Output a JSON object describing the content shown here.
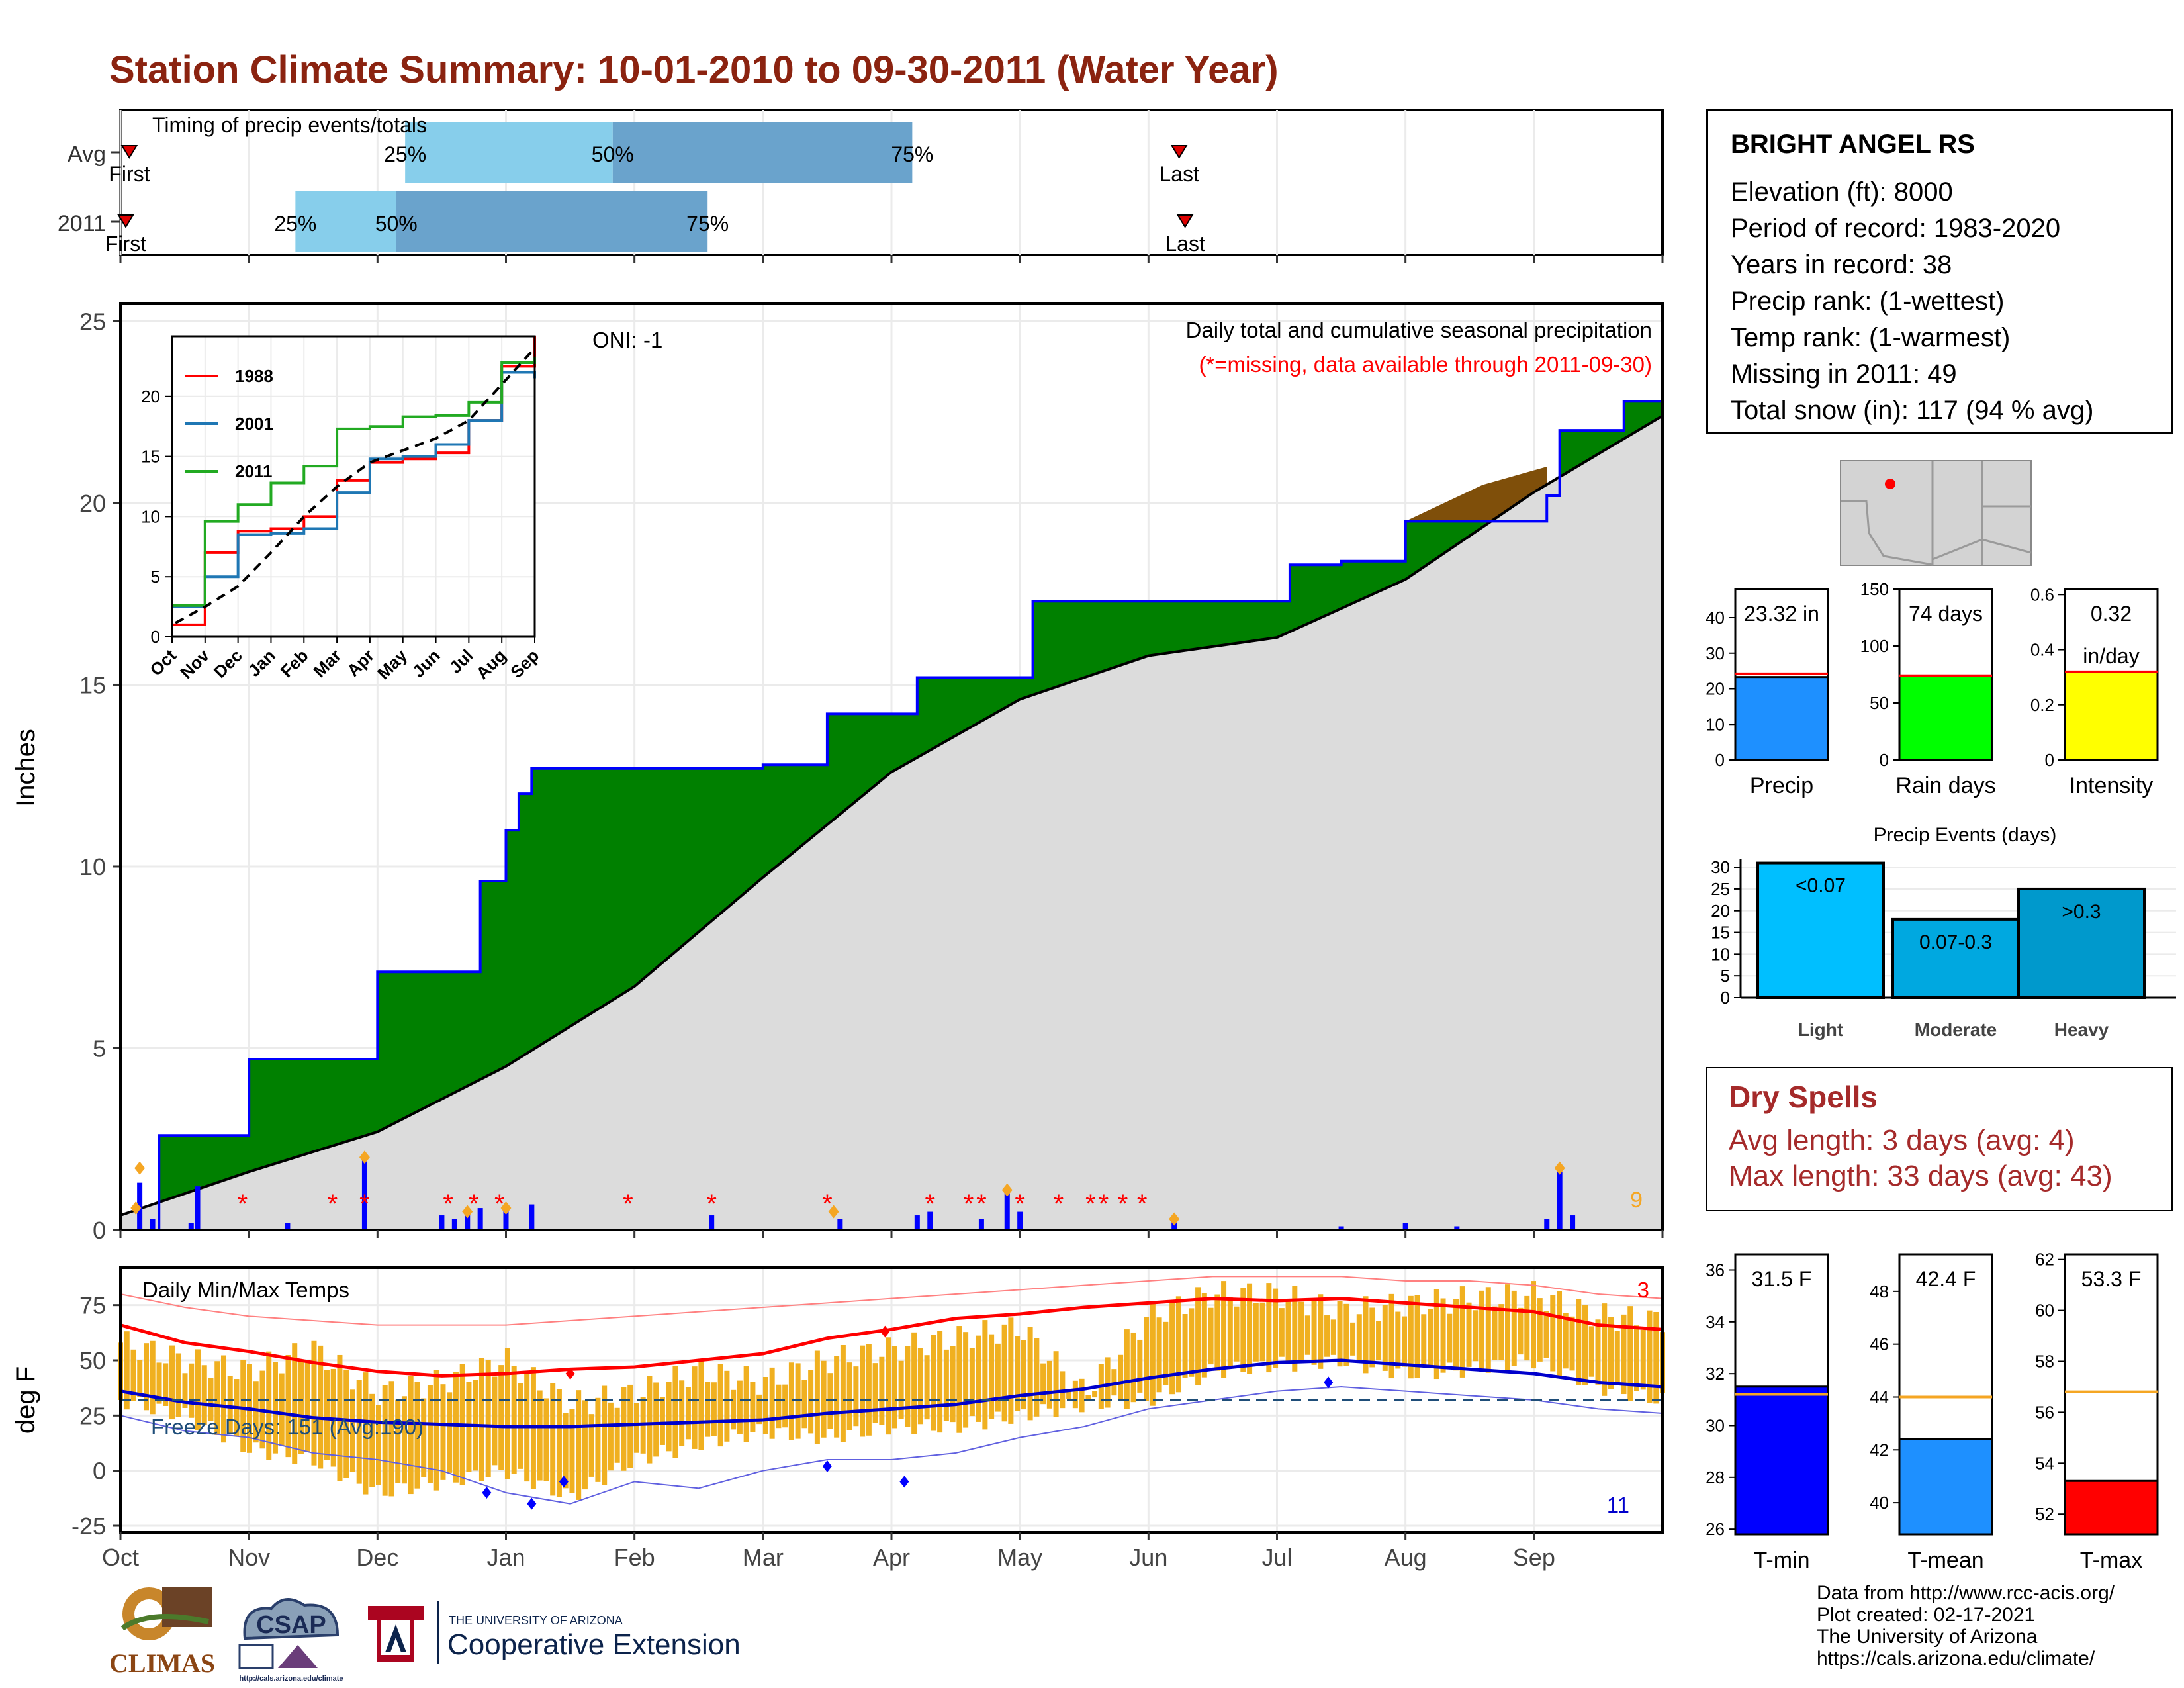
{
  "title": "Station Climate Summary: 10-01-2010 to 09-30-2011 (Water Year)",
  "colors": {
    "title": "#8b2310",
    "green": "#008000",
    "brown": "#7f4f0a",
    "blue": "#0000ff",
    "orange": "#f0b020",
    "red": "#ff0000",
    "gray": "#dcdcdc"
  },
  "months": [
    "Oct",
    "Nov",
    "Dec",
    "Jan",
    "Feb",
    "Mar",
    "Apr",
    "May",
    "Jun",
    "Jul",
    "Aug",
    "Sep"
  ],
  "timing": {
    "title": "Timing of precip events/totals",
    "rows": [
      "Avg",
      "2011"
    ],
    "avg": {
      "first": 0.12,
      "p25": 9.6,
      "p50": 16.6,
      "p75": 26.7,
      "last": 35.7
    },
    "y2011": {
      "first": 0.0,
      "p25": 5.9,
      "p50": 9.3,
      "p75": 19.8,
      "last": 35.9
    },
    "labels": {
      "first": "First",
      "last": "Last",
      "p25": "25%",
      "p50": "50%",
      "p75": "75%"
    }
  },
  "chart_data": [
    {
      "type": "area",
      "name": "cumulative",
      "title": "Daily total and cumulative seasonal precipitation",
      "subtitle": "(*=missing, data available through 2011-09-30)",
      "annotation": "ONI: -1",
      "ylabel": "Inches",
      "ylim": [
        0,
        25.5
      ],
      "yticks": [
        0,
        5,
        10,
        15,
        20,
        25
      ],
      "x_month_index": [
        0,
        0.3,
        0.8,
        1.0,
        1.9,
        2.0,
        2.6,
        2.8,
        3.0,
        3.1,
        3.2,
        3.7,
        5.0,
        5.5,
        6.2,
        7.1,
        8.3,
        9.1,
        9.5,
        10.0,
        10.3,
        11.1,
        11.2,
        11.7,
        12.0
      ],
      "season_2011": [
        0,
        2.6,
        2.6,
        4.7,
        4.7,
        7.1,
        7.1,
        9.6,
        11.0,
        12.0,
        12.7,
        12.7,
        12.8,
        14.2,
        15.2,
        17.3,
        17.3,
        18.3,
        18.4,
        19.5,
        19.5,
        20.2,
        22.0,
        22.8,
        23.32
      ],
      "avg_x_month_index": [
        0,
        1,
        2,
        3,
        4,
        5,
        6,
        7,
        8,
        9,
        10,
        11,
        12
      ],
      "avg_cumulative": [
        0.4,
        1.6,
        2.7,
        4.5,
        6.7,
        9.7,
        12.6,
        14.6,
        15.8,
        16.3,
        17.9,
        20.3,
        22.4
      ],
      "daily_bar_count_note": "9",
      "missing_months": [
        0.95,
        1.65,
        1.9,
        2.55,
        2.75,
        2.95,
        3.95,
        4.6,
        5.5,
        6.3,
        6.6,
        6.7,
        7.0,
        7.3,
        7.55,
        7.65,
        7.8,
        7.95
      ]
    },
    {
      "type": "line",
      "name": "inset",
      "categories": [
        "Oct",
        "Nov",
        "Dec",
        "Jan",
        "Feb",
        "Mar",
        "Apr",
        "May",
        "Jun",
        "Jul",
        "Aug",
        "Sep"
      ],
      "ylim": [
        0,
        25
      ],
      "yticks": [
        0,
        5,
        10,
        15,
        20
      ],
      "series": [
        {
          "name": "1988",
          "color": "#ff0000",
          "values": [
            1.0,
            7.0,
            8.8,
            9.0,
            10.0,
            13.0,
            14.5,
            14.8,
            15.3,
            18.0,
            22.5,
            25.0
          ]
        },
        {
          "name": "2001",
          "color": "#1f77b4",
          "values": [
            2.5,
            5.0,
            8.5,
            8.6,
            9.0,
            12.0,
            14.8,
            15.0,
            16.0,
            18.0,
            22.0,
            21.5
          ]
        },
        {
          "name": "2011",
          "color": "#22aa22",
          "values": [
            2.6,
            9.6,
            11.0,
            12.8,
            14.2,
            17.3,
            17.5,
            18.3,
            18.4,
            19.5,
            22.8,
            23.3
          ]
        },
        {
          "name": "avg",
          "color": "#000000",
          "values": [
            1.0,
            2.5,
            4.2,
            7.0,
            10.0,
            12.5,
            14.5,
            15.5,
            16.5,
            18.0,
            21.0,
            24.0
          ]
        }
      ]
    },
    {
      "type": "line",
      "name": "temps",
      "title": "Daily Min/Max Temps",
      "ylabel": "deg F",
      "ylim": [
        -28,
        92
      ],
      "yticks": [
        -25,
        0,
        25,
        50,
        75
      ],
      "freeze_label": "Freeze Days: 151 (Avg:190)",
      "count_top": "3",
      "count_bottom": "11",
      "x_month_index": [
        0,
        0.5,
        1,
        1.5,
        2,
        2.5,
        3,
        3.5,
        4,
        4.5,
        5,
        5.5,
        6,
        6.5,
        7,
        7.5,
        8,
        8.5,
        9,
        9.5,
        10,
        10.5,
        11,
        11.5,
        12
      ],
      "avg_max": [
        66,
        58,
        54,
        49,
        45,
        43,
        44,
        46,
        47,
        50,
        53,
        60,
        64,
        69,
        71,
        74,
        76,
        78,
        77,
        78,
        76,
        74,
        72,
        66,
        64
      ],
      "avg_min": [
        36,
        31,
        28,
        24,
        22,
        21,
        20,
        20,
        21,
        22,
        23,
        26,
        28,
        30,
        34,
        37,
        42,
        46,
        49,
        50,
        48,
        46,
        44,
        40,
        38
      ],
      "rec_max": [
        80,
        74,
        70,
        68,
        66,
        66,
        66,
        68,
        70,
        72,
        74,
        76,
        78,
        80,
        82,
        84,
        86,
        88,
        88,
        88,
        86,
        86,
        84,
        80,
        78
      ],
      "rec_min": [
        25,
        18,
        15,
        8,
        5,
        0,
        -10,
        -15,
        -5,
        -8,
        0,
        5,
        5,
        8,
        15,
        20,
        28,
        32,
        36,
        38,
        36,
        34,
        32,
        28,
        26
      ],
      "max_2011": [
        58,
        50,
        45,
        55,
        35,
        40,
        50,
        30,
        35,
        45,
        40,
        50,
        55,
        60,
        65,
        35,
        70,
        80,
        80,
        72,
        75,
        78,
        80,
        70,
        68
      ],
      "min_2011": [
        32,
        25,
        10,
        5,
        -10,
        -5,
        0,
        -12,
        5,
        12,
        18,
        15,
        20,
        20,
        25,
        30,
        32,
        45,
        48,
        50,
        44,
        46,
        50,
        38,
        32
      ],
      "freeze_line": 32
    },
    {
      "type": "bar",
      "name": "mini-precip",
      "categories": [
        "Precip",
        "Rain days",
        "Intensity"
      ],
      "values": [
        23.32,
        74,
        0.32
      ],
      "averages": [
        24.2,
        74,
        0.32
      ],
      "labels": [
        "23.32 in",
        "74 days",
        "0.32"
      ],
      "label2": "in/day",
      "ylims": [
        [
          0,
          48
        ],
        [
          0,
          150
        ],
        [
          0,
          0.62
        ]
      ],
      "yticks": [
        [
          0,
          10,
          20,
          30,
          40
        ],
        [
          0,
          50,
          100,
          150
        ],
        [
          0.0,
          0.2,
          0.4,
          0.6
        ]
      ],
      "colors": [
        "#1e90ff",
        "#00ff00",
        "#ffff00"
      ]
    },
    {
      "type": "bar",
      "name": "events",
      "title": "Precip Events (days)",
      "categories": [
        "Light",
        "Moderate",
        "Heavy"
      ],
      "values": [
        31,
        18,
        25
      ],
      "labels": [
        "<0.07",
        "0.07-0.3",
        ">0.3"
      ],
      "ylim": [
        0,
        32
      ],
      "yticks": [
        0,
        5,
        10,
        15,
        20,
        25,
        30
      ],
      "colors": [
        "#00bfff",
        "#00a8e0",
        "#0099cc"
      ]
    },
    {
      "type": "bar",
      "name": "mini-temp",
      "categories": [
        "T-min",
        "T-mean",
        "T-max"
      ],
      "values": [
        31.5,
        42.4,
        53.3
      ],
      "averages": [
        31.2,
        44.0,
        56.8
      ],
      "labels": [
        "31.5 F",
        "42.4 F",
        "53.3 F"
      ],
      "ylims": [
        [
          25.8,
          36.6
        ],
        [
          38.8,
          49.4
        ],
        [
          51.2,
          62.2
        ]
      ],
      "yticks": [
        [
          26,
          28,
          30,
          32,
          34,
          36
        ],
        [
          40,
          42,
          44,
          46,
          48
        ],
        [
          52,
          54,
          56,
          58,
          60,
          62
        ]
      ],
      "colors": [
        "#0000ff",
        "#1e90ff",
        "#ff0000"
      ]
    }
  ],
  "station": {
    "name": "BRIGHT ANGEL RS",
    "lines": [
      "Elevation (ft): 8000",
      "Period of record: 1983-2020",
      "Years in record: 38",
      "Precip rank:  (1-wettest)",
      "Temp rank:  (1-warmest)",
      "Missing in 2011: 49",
      "Total snow (in): 117 (94 % avg)"
    ]
  },
  "dry": {
    "title": "Dry Spells",
    "avg_line": "Avg length: 3 days (avg: 4)",
    "max_line": "Max length: 33 days (avg: 43)"
  },
  "credits": [
    "Data from http://www.rcc-acis.org/",
    "Plot created: 02-17-2021",
    "The University of Arizona",
    "https://cals.arizona.edu/climate/"
  ],
  "logos": {
    "climas": "CLIMAS",
    "csap": "CSAP",
    "csap_url": "http://cals.arizona.edu/climate",
    "ua_small": "THE UNIVERSITY OF ARIZONA",
    "ua_big": "Cooperative Extension"
  }
}
